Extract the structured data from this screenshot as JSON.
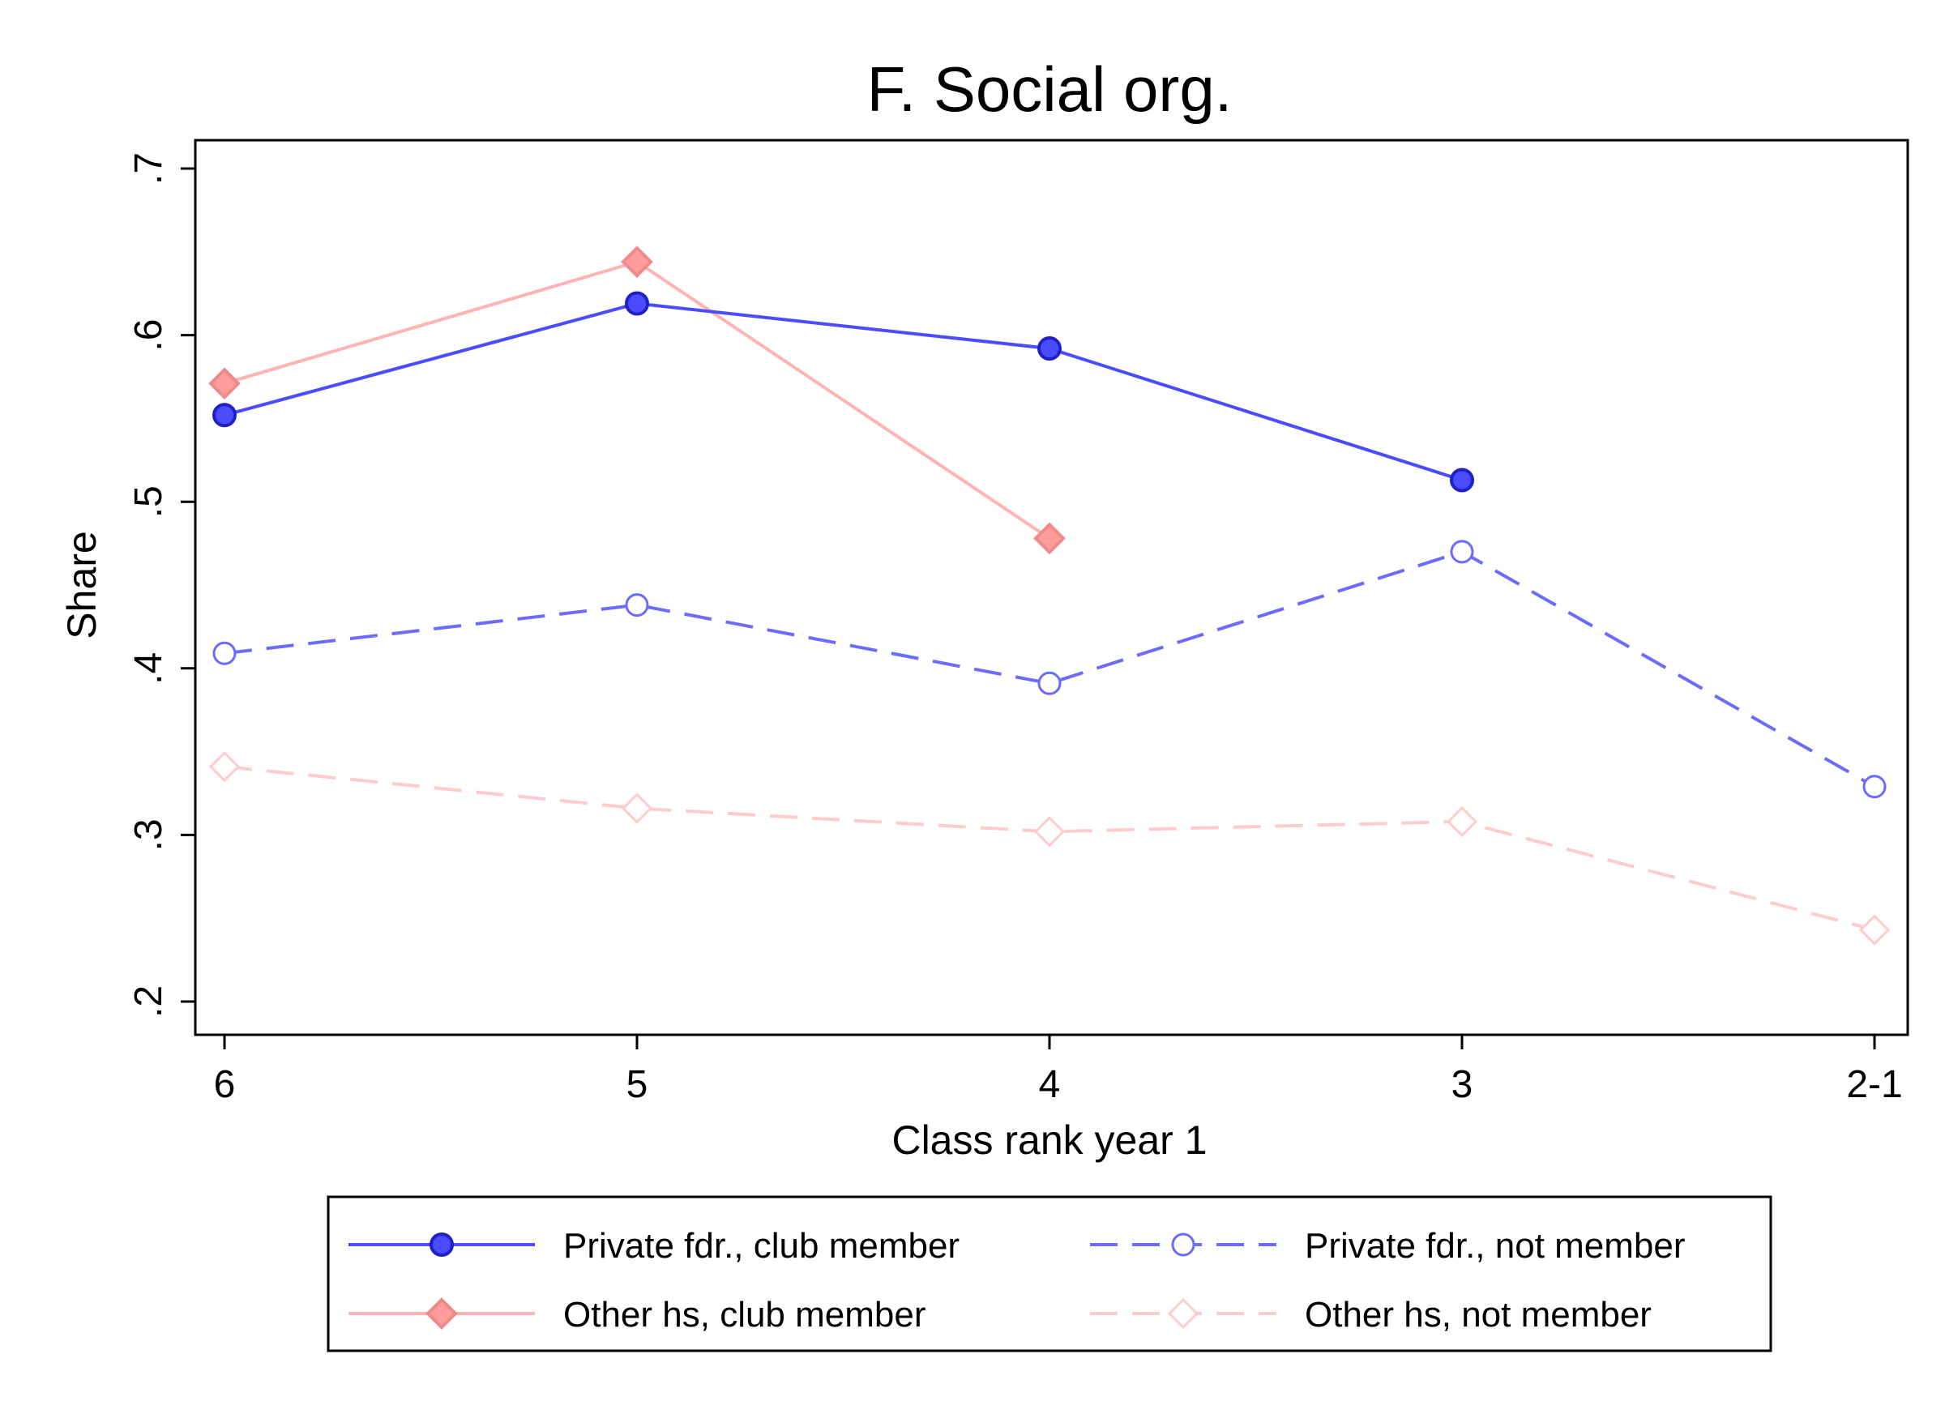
{
  "chart_data": {
    "type": "line",
    "title": "F. Social org.",
    "xlabel": "Class rank year 1",
    "ylabel": "Share",
    "categories": [
      "6",
      "5",
      "4",
      "3",
      "2-1"
    ],
    "yticks": [
      ".2",
      ".3",
      ".4",
      ".5",
      ".6",
      ".7"
    ],
    "ytick_values": [
      0.2,
      0.3,
      0.4,
      0.5,
      0.6,
      0.7
    ],
    "ylim": [
      0.18,
      0.72
    ],
    "grid": false,
    "legend_placement": "bottom",
    "series": [
      {
        "name": "Private fdr., club member",
        "values": [
          0.552,
          0.619,
          0.592,
          0.513,
          null
        ],
        "color": "#4b4bff",
        "marker": "filled-circle",
        "line": "solid"
      },
      {
        "name": "Private fdr., not member",
        "values": [
          0.409,
          0.438,
          0.391,
          0.47,
          0.329
        ],
        "color": "#6b6bff",
        "marker": "hollow-circle",
        "line": "dashed"
      },
      {
        "name": "Other hs, club member",
        "values": [
          0.571,
          0.644,
          0.478,
          null,
          null
        ],
        "color": "#ffb3b3",
        "marker": "filled-diamond",
        "line": "solid"
      },
      {
        "name": "Other hs, not member",
        "values": [
          0.341,
          0.316,
          0.302,
          0.308,
          0.243
        ],
        "color": "#ffcccc",
        "marker": "hollow-diamond",
        "line": "dashed"
      }
    ]
  }
}
